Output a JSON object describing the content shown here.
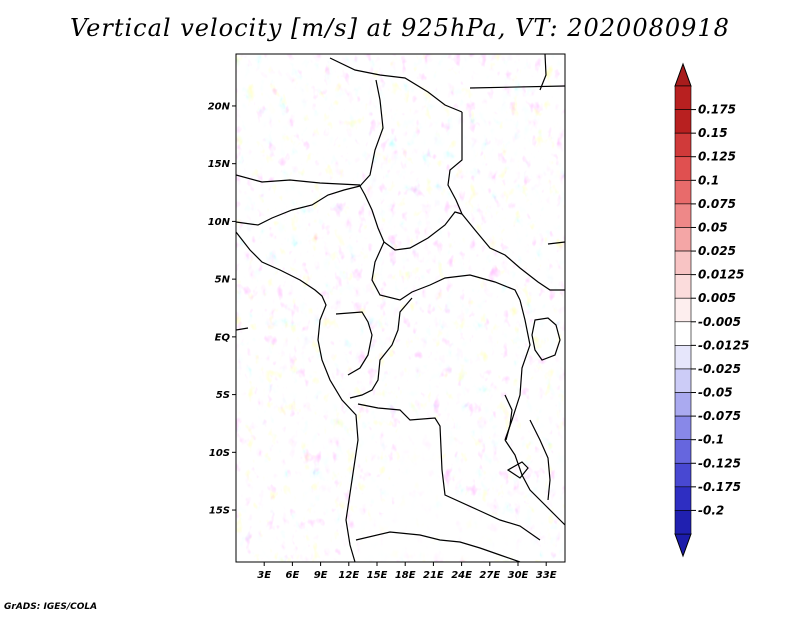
{
  "title": "Vertical velocity [m/s] at 925hPa, VT: 2020080918",
  "credit": "GrADS: IGES/COLA",
  "map": {
    "lat_range": [
      -19.5,
      24.5
    ],
    "lon_range": [
      0,
      35
    ],
    "lat_ticks": [
      {
        "value": 20,
        "label": "20N"
      },
      {
        "value": 15,
        "label": "15N"
      },
      {
        "value": 10,
        "label": "10N"
      },
      {
        "value": 5,
        "label": "5N"
      },
      {
        "value": 0,
        "label": "EQ"
      },
      {
        "value": -5,
        "label": "5S"
      },
      {
        "value": -10,
        "label": "10S"
      },
      {
        "value": -15,
        "label": "15S"
      }
    ],
    "lon_ticks": [
      {
        "value": 3,
        "label": "3E"
      },
      {
        "value": 6,
        "label": "6E"
      },
      {
        "value": 9,
        "label": "9E"
      },
      {
        "value": 12,
        "label": "12E"
      },
      {
        "value": 15,
        "label": "15E"
      },
      {
        "value": 18,
        "label": "18E"
      },
      {
        "value": 21,
        "label": "21E"
      },
      {
        "value": 24,
        "label": "24E"
      },
      {
        "value": 27,
        "label": "27E"
      },
      {
        "value": 30,
        "label": "30E"
      },
      {
        "value": 33,
        "label": "33E"
      }
    ]
  },
  "colorbar": {
    "top_color": "#a81c1c",
    "bottom_color": "#1c1caa",
    "levels": [
      {
        "label": "0.175",
        "color": "#b82020"
      },
      {
        "label": "0.15",
        "color": "#d03a3a"
      },
      {
        "label": "0.125",
        "color": "#e05050"
      },
      {
        "label": "0.1",
        "color": "#e86b6b"
      },
      {
        "label": "0.075",
        "color": "#ee8888"
      },
      {
        "label": "0.05",
        "color": "#f4a6a6"
      },
      {
        "label": "0.025",
        "color": "#f8c4c4"
      },
      {
        "label": "0.0125",
        "color": "#fbdcdc"
      },
      {
        "label": "0.005",
        "color": "#fdeeee"
      },
      {
        "label": "-0.005",
        "color": "#ffffff"
      },
      {
        "label": "-0.0125",
        "color": "#e6e6fb"
      },
      {
        "label": "-0.025",
        "color": "#ccccf7"
      },
      {
        "label": "-0.05",
        "color": "#aaaaf0"
      },
      {
        "label": "-0.075",
        "color": "#8888e8"
      },
      {
        "label": "-0.1",
        "color": "#6666de"
      },
      {
        "label": "-0.125",
        "color": "#4848d2"
      },
      {
        "label": "-0.175",
        "color": "#2e2ec2"
      },
      {
        "label": "-0.2",
        "color": "#2020b0"
      }
    ]
  }
}
